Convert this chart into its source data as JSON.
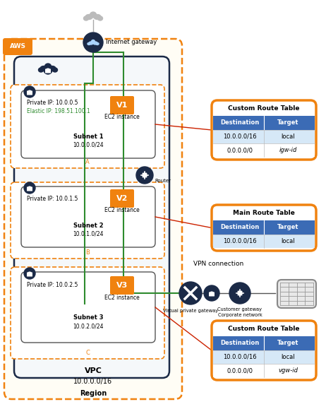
{
  "orange": "#F0820F",
  "dark_blue": "#1B2A47",
  "blue": "#3B6BB5",
  "light_blue": "#C8DAEA",
  "green": "#2E8B2E",
  "red": "#CC2200",
  "gray_cloud": "#AAAAAA",
  "white": "#FFFFFF",
  "region_bg": "#FFFDF5",
  "aws_inner_bg": "#F5F8FA",
  "subnet_dash_color": "#F0820F",
  "inner_box_edge": "#555555",
  "table_row_light": "#D6E8F7",
  "table_row_white": "#FFFFFF",
  "corp_bg": "#E8E8E8",
  "corp_edge": "#888888",
  "subnet1_label": "Subnet 1",
  "subnet1_cidr": "10.0.0.0/24",
  "subnet2_label": "Subnet 2",
  "subnet2_cidr": "10.0.1.0/24",
  "subnet3_label": "Subnet 3",
  "subnet3_cidr": "10.0.2.0/24",
  "vpc_line1": "VPC",
  "vpc_line2": "10.0.0.0/16",
  "region_label": "Region",
  "v1_private": "Private IP: 10.0.0.5",
  "v1_elastic": "Elastic IP: 198.51.100.1",
  "v2_private": "Private IP: 10.0.1.5",
  "v3_private": "Private IP: 10.0.2.5",
  "ec2_label": "EC2 instance",
  "vpn_label": "VPN connection",
  "vpg_label": "Virtual private gateway",
  "cg_label": "Customer gateway",
  "corp_label": "Corporate network",
  "igw_label": "Internet gateway",
  "router_label": "Router",
  "table1_title": "Custom Route Table",
  "table1_rows": [
    [
      "10.0.0.0/16",
      "local"
    ],
    [
      "0.0.0.0/0",
      "igw-id"
    ]
  ],
  "table2_title": "Main Route Table",
  "table2_rows": [
    [
      "10.0.0.0/16",
      "local"
    ]
  ],
  "table3_title": "Custom Route Table",
  "table3_rows": [
    [
      "10.0.0.0/16",
      "local"
    ],
    [
      "0.0.0.0/0",
      "vgw-id"
    ]
  ],
  "col_headers": [
    "Destination",
    "Target"
  ],
  "A_label": "A",
  "B_label": "B",
  "C_label": "C"
}
